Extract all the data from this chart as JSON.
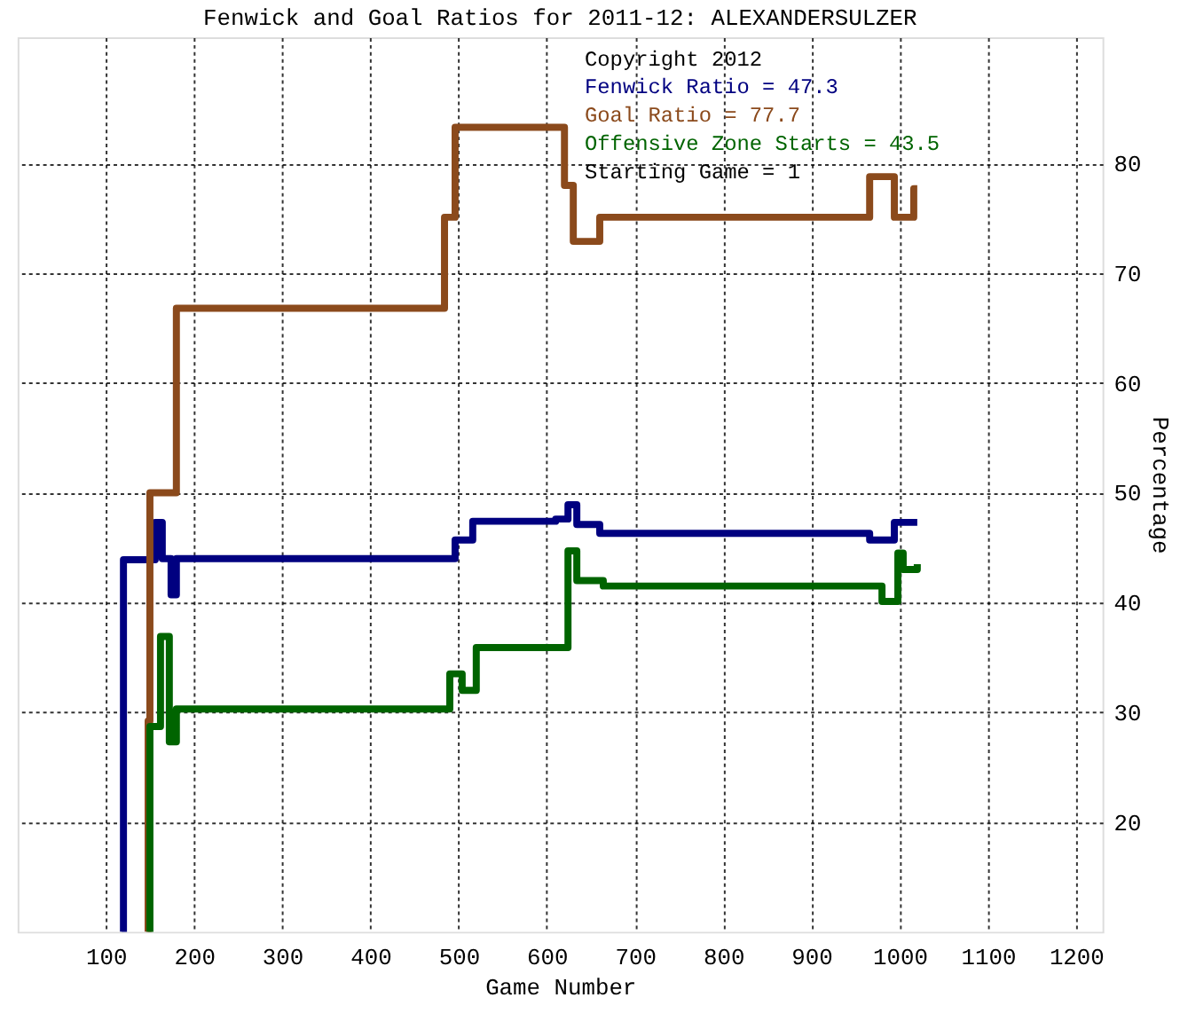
{
  "chart_data": {
    "type": "step",
    "title": "Fenwick and Goal Ratios for 2011-12: ALEXANDERSULZER",
    "xlabel": "Game Number",
    "ylabel": "Percentage",
    "xlim": [
      0,
      1230
    ],
    "ylim": [
      10,
      91.5
    ],
    "xticks": [
      100,
      200,
      300,
      400,
      500,
      600,
      700,
      800,
      900,
      1000,
      1100,
      1200
    ],
    "yticks": [
      20,
      30,
      40,
      50,
      60,
      70,
      80
    ],
    "grid": true,
    "legend": "top right",
    "annotations": [
      "Copyright 2012",
      "Starting Game = 1"
    ],
    "series": [
      {
        "name": "Fenwick Ratio = 47.3",
        "color": "#000080",
        "x": [
          118,
          120,
          146,
          156,
          164,
          174,
          180,
          484,
          496,
          516,
          610,
          624,
          634,
          660,
          966,
          994,
          1020
        ],
        "values": [
          10,
          43.9,
          43.9,
          47.3,
          44,
          40.7,
          44,
          44,
          45.7,
          47.4,
          47.6,
          48.9,
          47.1,
          46.3,
          45.7,
          47.3,
          47.3
        ]
      },
      {
        "name": "Goal Ratio = 77.7",
        "color": "#8b4a1c",
        "x": [
          146,
          148,
          150,
          180,
          484,
          496,
          620,
          630,
          660,
          966,
          994,
          1016,
          1020
        ],
        "values": [
          10,
          29.2,
          50,
          66.8,
          75.1,
          83.3,
          78,
          72.9,
          75.1,
          78.8,
          75.1,
          77.7,
          77.7
        ]
      },
      {
        "name": "Offensive Zone Starts = 43.5",
        "color": "#006400",
        "x": [
          148,
          150,
          162,
          172,
          180,
          490,
          504,
          520,
          624,
          634,
          664,
          980,
          998,
          1004,
          1020
        ],
        "values": [
          10,
          28.7,
          36.9,
          27.3,
          30.3,
          33.5,
          32,
          35.9,
          44.7,
          42,
          41.5,
          40.1,
          44.5,
          43,
          43.5
        ]
      }
    ]
  }
}
